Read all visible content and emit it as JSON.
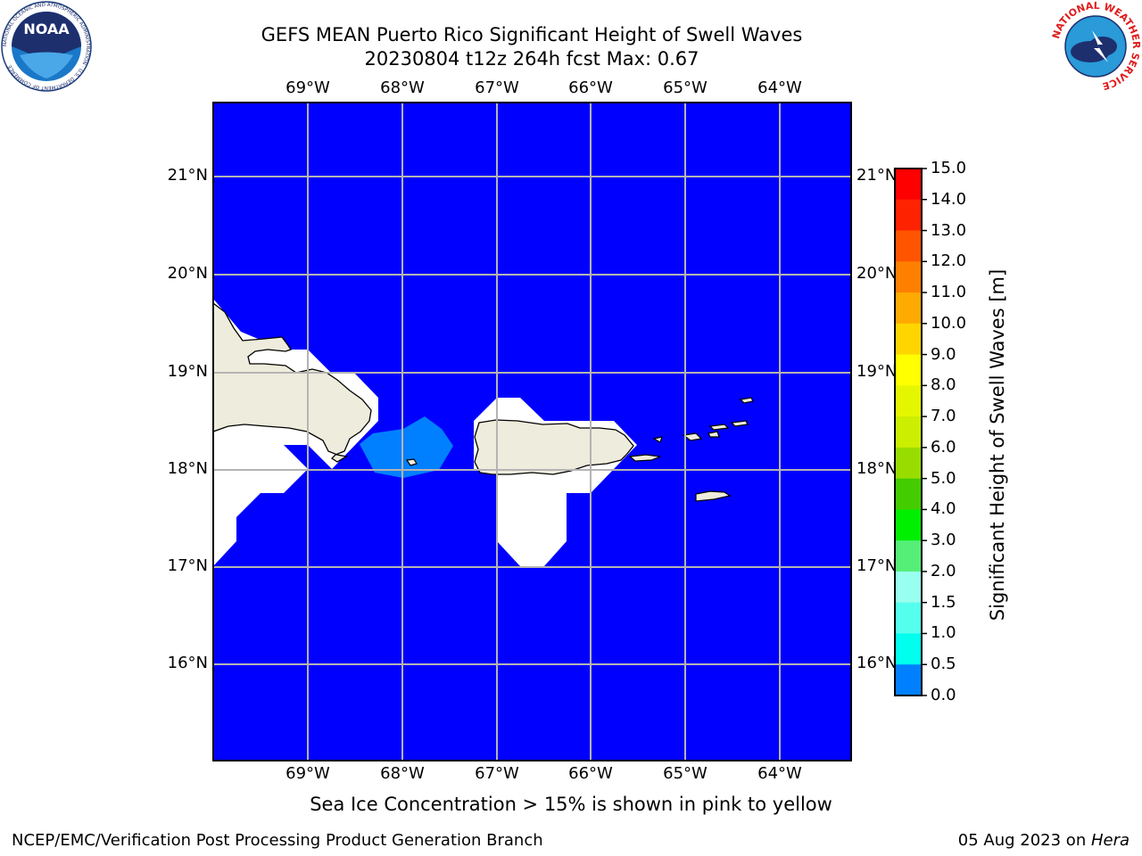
{
  "title": {
    "line1": "GEFS MEAN Puerto Rico Significant Height of Swell Waves",
    "line2": "20230804 t12z 264h fcst   Max: 0.67"
  },
  "map": {
    "lon_ticks": [
      "69°W",
      "68°W",
      "67°W",
      "66°W",
      "65°W",
      "64°W"
    ],
    "lat_ticks": [
      "21°N",
      "20°N",
      "19°N",
      "18°N",
      "17°N",
      "16°N"
    ],
    "ocean_color": "#0000ff",
    "swell_patch_color": "#0080ff",
    "land_color": "#eeecdc",
    "gridline_color": "#b4b4b4"
  },
  "colorbar": {
    "title": "Significant Height of Swell Waves [m]",
    "labels": [
      "15.0",
      "14.0",
      "13.0",
      "12.0",
      "11.0",
      "10.0",
      "9.0",
      "8.0",
      "7.0",
      "6.0",
      "5.0",
      "4.0",
      "3.0",
      "2.0",
      "1.5",
      "1.0",
      "0.5",
      "0.0"
    ],
    "colors": [
      "#ff0000",
      "#ff2200",
      "#ff5500",
      "#ff8000",
      "#ffaa00",
      "#ffd500",
      "#ffff00",
      "#e5f700",
      "#ccee00",
      "#99dd00",
      "#44cc00",
      "#00ee00",
      "#55ee77",
      "#99ffee",
      "#55ffee",
      "#00ffee",
      "#0080ff",
      "#0000ff"
    ]
  },
  "caption": "Sea Ice Concentration > 15% is shown in pink to yellow",
  "footer": {
    "left": "NCEP/EMC/Verification Post Processing Product Generation Branch",
    "date": "05 Aug 2023 on ",
    "machine": "Hera"
  },
  "logos": {
    "noaa": {
      "text": "NOAA",
      "ring_text": "NATIONAL OCEANIC AND ATMOSPHERIC ADMINISTRATION · U.S. DEPARTMENT OF COMMERCE"
    },
    "nws": {
      "ring_text": "NATIONAL WEATHER SERVICE"
    }
  }
}
